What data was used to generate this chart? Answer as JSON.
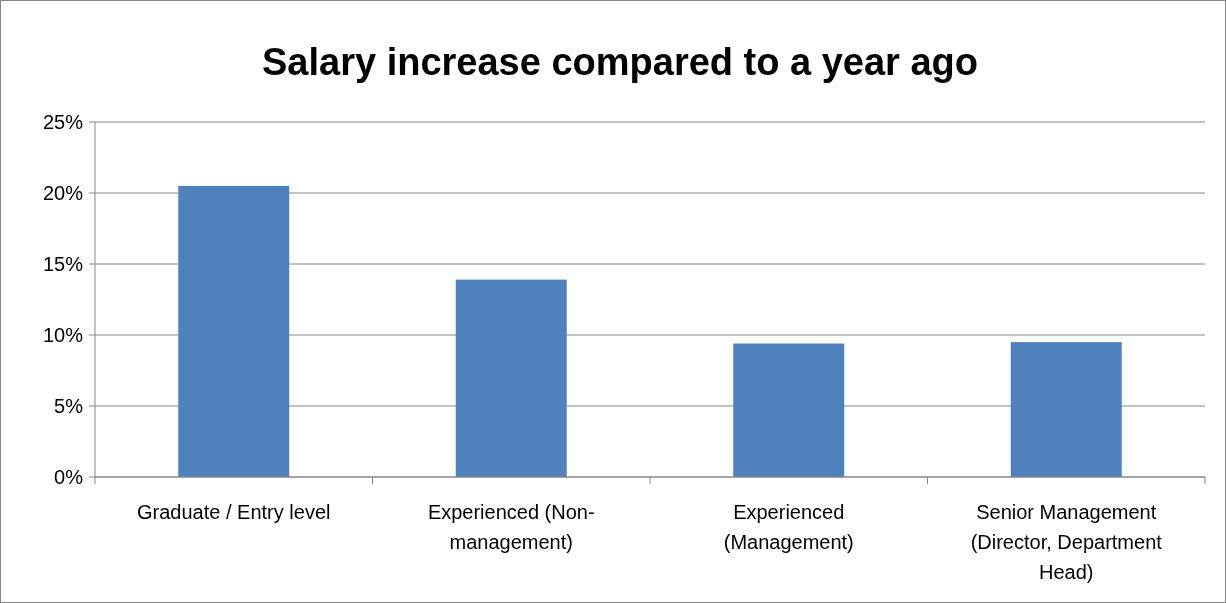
{
  "chart_data": {
    "type": "bar",
    "title": "Salary increase compared to a year ago",
    "categories": [
      "Graduate / Entry level",
      "Experienced (Non-management)",
      "Experienced (Management)",
      "Senior Management (Director, Department Head)"
    ],
    "values": [
      20.5,
      13.9,
      9.4,
      9.5
    ],
    "color": "#4f81bd",
    "ylim": [
      0,
      25
    ],
    "yticks": [
      {
        "value": 0,
        "label": "0%"
      },
      {
        "value": 5,
        "label": "5%"
      },
      {
        "value": 10,
        "label": "10%"
      },
      {
        "value": 15,
        "label": "15%"
      },
      {
        "value": 20,
        "label": "20%"
      },
      {
        "value": 25,
        "label": "25%"
      }
    ],
    "grid": "y"
  }
}
